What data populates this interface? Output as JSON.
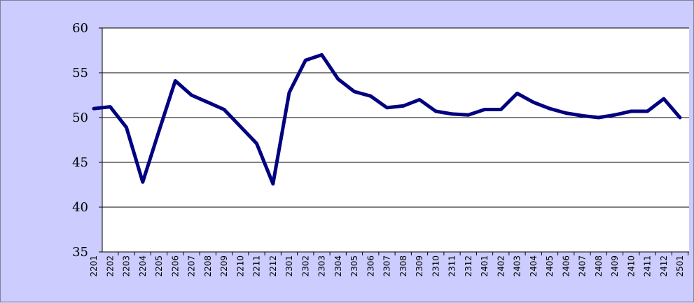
{
  "chart_data": {
    "type": "line",
    "title": "",
    "xlabel": "",
    "ylabel": "",
    "ylim": [
      35,
      60
    ],
    "yticks": [
      35,
      40,
      45,
      50,
      55,
      60
    ],
    "grid": "horizontal",
    "legend": "none",
    "line_color": "#000080",
    "plot_background": "#ffffff",
    "figure_background": "#ccccff",
    "categories": [
      "2201",
      "2202",
      "2203",
      "2204",
      "2205",
      "2206",
      "2207",
      "2208",
      "2209",
      "2210",
      "2211",
      "2212",
      "2301",
      "2302",
      "2303",
      "2304",
      "2305",
      "2306",
      "2307",
      "2308",
      "2309",
      "2310",
      "2311",
      "2312",
      "2401",
      "2402",
      "2403",
      "2404",
      "2405",
      "2406",
      "2407",
      "2408",
      "2409",
      "2410",
      "2411",
      "2412",
      "2501"
    ],
    "series": [
      {
        "values": [
          51.0,
          51.2,
          48.9,
          42.8,
          48.5,
          54.1,
          52.5,
          51.7,
          50.9,
          49.0,
          47.1,
          42.6,
          52.8,
          56.4,
          57.0,
          54.3,
          52.9,
          52.4,
          51.1,
          51.3,
          52.0,
          50.7,
          50.4,
          50.3,
          50.9,
          50.9,
          52.7,
          51.7,
          51.0,
          50.5,
          50.2,
          50.0,
          50.3,
          50.7,
          50.7,
          52.1,
          50.0
        ]
      }
    ]
  }
}
